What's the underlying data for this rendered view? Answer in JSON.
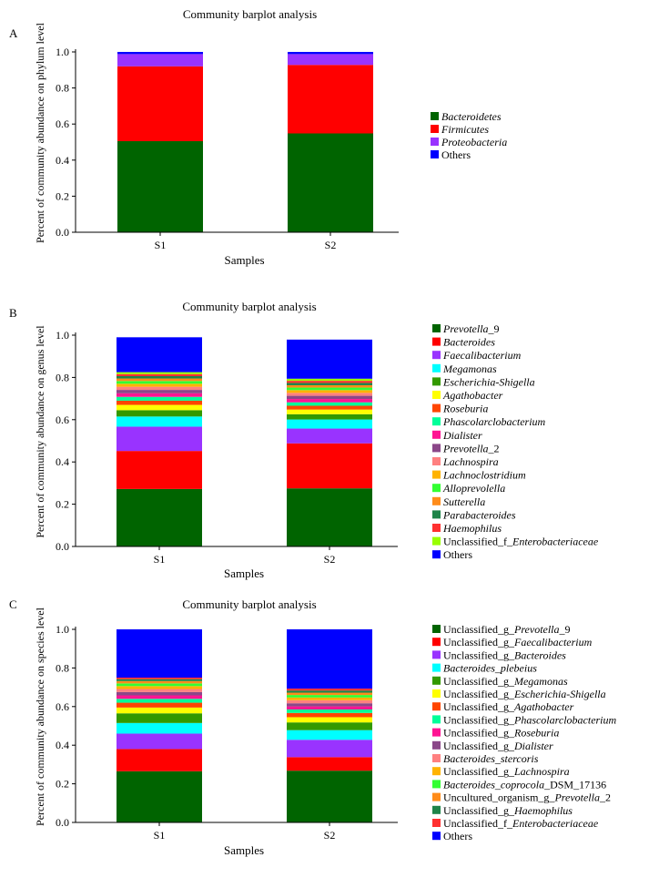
{
  "chart_data": [
    {
      "type": "bar",
      "panel_label": "A",
      "title": "Community barplot analysis",
      "xlabel": "Samples",
      "ylabel": "Percent of community abundance on phylum level",
      "categories": [
        "S1",
        "S2"
      ],
      "ylim": [
        0,
        1.0
      ],
      "yticks": [
        "0.0",
        "0.2",
        "0.4",
        "0.6",
        "0.8",
        "1.0"
      ],
      "legend_position": "right",
      "series": [
        {
          "name": "Bacteroidetes",
          "values": [
            0.505,
            0.548
          ],
          "color": "#006400",
          "style": [
            [
              "Bacteroidetes",
              "i"
            ]
          ]
        },
        {
          "name": "Firmicutes",
          "values": [
            0.415,
            0.38
          ],
          "color": "#ff0000",
          "style": [
            [
              "Firmicutes",
              "i"
            ]
          ]
        },
        {
          "name": "Proteobacteria",
          "values": [
            0.068,
            0.06
          ],
          "color": "#9933ff",
          "style": [
            [
              "Proteobacteria",
              "i"
            ]
          ]
        },
        {
          "name": "Others",
          "values": [
            0.012,
            0.012
          ],
          "color": "#0000ff",
          "style": [
            [
              "Others",
              "n"
            ]
          ]
        }
      ]
    },
    {
      "type": "bar",
      "panel_label": "B",
      "title": "Community barplot analysis",
      "xlabel": "Samples",
      "ylabel": "Percent of community abundance on genus level",
      "categories": [
        "S1",
        "S2"
      ],
      "ylim": [
        0,
        1.0
      ],
      "yticks": [
        "0.0",
        "0.2",
        "0.4",
        "0.6",
        "0.8",
        "1.0"
      ],
      "legend_position": "right",
      "series": [
        {
          "name": "Prevotella_9",
          "values": [
            0.272,
            0.275
          ],
          "color": "#006400",
          "style": [
            [
              "Prevotella",
              "i"
            ],
            [
              "_9",
              "n"
            ]
          ]
        },
        {
          "name": "Bacteroides",
          "values": [
            0.18,
            0.213
          ],
          "color": "#ff0000",
          "style": [
            [
              "Bacteroides",
              "i"
            ]
          ]
        },
        {
          "name": "Faecalibacterium",
          "values": [
            0.115,
            0.07
          ],
          "color": "#9933ff",
          "style": [
            [
              "Faecalibacterium",
              "i"
            ]
          ]
        },
        {
          "name": "Megamonas",
          "values": [
            0.048,
            0.043
          ],
          "color": "#00ffff",
          "style": [
            [
              "Megamonas",
              "i"
            ]
          ]
        },
        {
          "name": "Escherichia-Shigella",
          "values": [
            0.03,
            0.025
          ],
          "color": "#339900",
          "style": [
            [
              "Escherichia-Shigella",
              "i"
            ]
          ]
        },
        {
          "name": "Agathobacter",
          "values": [
            0.025,
            0.022
          ],
          "color": "#ffff00",
          "style": [
            [
              "Agathobacter",
              "i"
            ]
          ]
        },
        {
          "name": "Roseburia",
          "values": [
            0.02,
            0.018
          ],
          "color": "#ff4500",
          "style": [
            [
              "Roseburia",
              "i"
            ]
          ]
        },
        {
          "name": "Phascolarclobacterium",
          "values": [
            0.018,
            0.016
          ],
          "color": "#00ff99",
          "style": [
            [
              "Phascolarclobacterium",
              "i"
            ]
          ]
        },
        {
          "name": "Dialister",
          "values": [
            0.017,
            0.016
          ],
          "color": "#ff1493",
          "style": [
            [
              "Dialister",
              "i"
            ]
          ]
        },
        {
          "name": "Prevotella_2",
          "values": [
            0.016,
            0.015
          ],
          "color": "#8b4789",
          "style": [
            [
              "Prevotella",
              "i"
            ],
            [
              "_2",
              "n"
            ]
          ]
        },
        {
          "name": "Lachnospira",
          "values": [
            0.015,
            0.014
          ],
          "color": "#ff8080",
          "style": [
            [
              "Lachnospira",
              "i"
            ]
          ]
        },
        {
          "name": "Lachnoclostridium",
          "values": [
            0.014,
            0.013
          ],
          "color": "#ffb300",
          "style": [
            [
              "Lachnoclostridium",
              "i"
            ]
          ]
        },
        {
          "name": "Alloprevolella",
          "values": [
            0.013,
            0.012
          ],
          "color": "#33ff33",
          "style": [
            [
              "Alloprevolella",
              "i"
            ]
          ]
        },
        {
          "name": "Sutterella",
          "values": [
            0.012,
            0.011
          ],
          "color": "#ff8c1a",
          "style": [
            [
              "Sutterella",
              "i"
            ]
          ]
        },
        {
          "name": "Parabacteroides",
          "values": [
            0.011,
            0.011
          ],
          "color": "#1e8449",
          "style": [
            [
              "Parabacteroides",
              "i"
            ]
          ]
        },
        {
          "name": "Haemophilus",
          "values": [
            0.01,
            0.01
          ],
          "color": "#ff3030",
          "style": [
            [
              "Haemophilus",
              "i"
            ]
          ]
        },
        {
          "name": "Unclassified_f_Enterobacteriaceae",
          "values": [
            0.009,
            0.01
          ],
          "color": "#99ff00",
          "style": [
            [
              "Unclassified_f_",
              "n"
            ],
            [
              "Enterobacteriaceae",
              "i"
            ]
          ]
        },
        {
          "name": "Others",
          "values": [
            0.165,
            0.185
          ],
          "color": "#0000ff",
          "style": [
            [
              "Others",
              "n"
            ]
          ]
        }
      ]
    },
    {
      "type": "bar",
      "panel_label": "C",
      "title": "Community barplot analysis",
      "xlabel": "Samples",
      "ylabel": "Percent of community abundance on species level",
      "categories": [
        "S1",
        "S2"
      ],
      "ylim": [
        0,
        1.0
      ],
      "yticks": [
        "0.0",
        "0.2",
        "0.4",
        "0.6",
        "0.8",
        "1.0"
      ],
      "legend_position": "right",
      "series": [
        {
          "name": "Unclassified_g_Prevotella_9",
          "values": [
            0.265,
            0.268
          ],
          "color": "#006400",
          "style": [
            [
              "Unclassified_g_",
              "n"
            ],
            [
              "Prevotella",
              "i"
            ],
            [
              "_9",
              "n"
            ]
          ]
        },
        {
          "name": "Unclassified_g_Faecalibacterium",
          "values": [
            0.115,
            0.07
          ],
          "color": "#ff0000",
          "style": [
            [
              "Unclassified_g_",
              "n"
            ],
            [
              "Faecalibacterium",
              "i"
            ]
          ]
        },
        {
          "name": "Unclassified_g_Bacteroides",
          "values": [
            0.08,
            0.09
          ],
          "color": "#9933ff",
          "style": [
            [
              "Unclassified_g_",
              "n"
            ],
            [
              "Bacteroides",
              "i"
            ]
          ]
        },
        {
          "name": "Bacteroides_plebeius",
          "values": [
            0.055,
            0.05
          ],
          "color": "#00ffff",
          "style": [
            [
              "Bacteroides",
              "i"
            ],
            [
              "_",
              "n"
            ],
            [
              "plebeius",
              "i"
            ]
          ]
        },
        {
          "name": "Unclassified_g_Megamonas",
          "values": [
            0.05,
            0.04
          ],
          "color": "#339900",
          "style": [
            [
              "Unclassified_g_",
              "n"
            ],
            [
              "Megamonas",
              "i"
            ]
          ]
        },
        {
          "name": "Unclassified_g_Escherichia-Shigella",
          "values": [
            0.03,
            0.027
          ],
          "color": "#ffff00",
          "style": [
            [
              "Unclassified_g_",
              "n"
            ],
            [
              "Escherichia-Shigella",
              "i"
            ]
          ]
        },
        {
          "name": "Unclassified_g_Agathobacter",
          "values": [
            0.025,
            0.022
          ],
          "color": "#ff4500",
          "style": [
            [
              "Unclassified_g_",
              "n"
            ],
            [
              "Agathobacter",
              "i"
            ]
          ]
        },
        {
          "name": "Unclassified_g_Phascolarclobacterium",
          "values": [
            0.02,
            0.018
          ],
          "color": "#00ff99",
          "style": [
            [
              "Unclassified_g_",
              "n"
            ],
            [
              "Phascolarclobacterium",
              "i"
            ]
          ]
        },
        {
          "name": "Unclassified_g_Roseburia",
          "values": [
            0.018,
            0.016
          ],
          "color": "#ff1493",
          "style": [
            [
              "Unclassified_g_",
              "n"
            ],
            [
              "Roseburia",
              "i"
            ]
          ]
        },
        {
          "name": "Unclassified_g_Dialister",
          "values": [
            0.017,
            0.016
          ],
          "color": "#8b4789",
          "style": [
            [
              "Unclassified_g_",
              "n"
            ],
            [
              "Dialister",
              "i"
            ]
          ]
        },
        {
          "name": "Bacteroides_stercoris",
          "values": [
            0.016,
            0.016
          ],
          "color": "#ff8080",
          "style": [
            [
              "Bacteroides",
              "i"
            ],
            [
              "_",
              "n"
            ],
            [
              "stercoris",
              "i"
            ]
          ]
        },
        {
          "name": "Unclassified_g_Lachnospira",
          "values": [
            0.015,
            0.014
          ],
          "color": "#ffb300",
          "style": [
            [
              "Unclassified_g_",
              "n"
            ],
            [
              "Lachnospira",
              "i"
            ]
          ]
        },
        {
          "name": "Bacteroides_coprocola_DSM_17136",
          "values": [
            0.014,
            0.013
          ],
          "color": "#33ff33",
          "style": [
            [
              "Bacteroides",
              "i"
            ],
            [
              "_",
              "n"
            ],
            [
              "coprocola",
              "i"
            ],
            [
              "_DSM_17136",
              "n"
            ]
          ]
        },
        {
          "name": "Uncultured_organism_g_Prevotella_2",
          "values": [
            0.012,
            0.012
          ],
          "color": "#ff8c1a",
          "style": [
            [
              "Uncultured_organism_g_",
              "n"
            ],
            [
              "Prevotella",
              "i"
            ],
            [
              "_2",
              "n"
            ]
          ]
        },
        {
          "name": "Unclassified_g_Haemophilus",
          "values": [
            0.01,
            0.011
          ],
          "color": "#1e8449",
          "style": [
            [
              "Unclassified_g_",
              "n"
            ],
            [
              "Haemophilus",
              "i"
            ]
          ]
        },
        {
          "name": "Unclassified_f_Enterobacteriaceae",
          "values": [
            0.008,
            0.01
          ],
          "color": "#ff3030",
          "style": [
            [
              "Unclassified_f_",
              "n"
            ],
            [
              "Enterobacteriaceae",
              "i"
            ]
          ]
        },
        {
          "name": "Others",
          "values": [
            0.25,
            0.307
          ],
          "color": "#0000ff",
          "style": [
            [
              "Others",
              "n"
            ]
          ]
        }
      ]
    }
  ]
}
